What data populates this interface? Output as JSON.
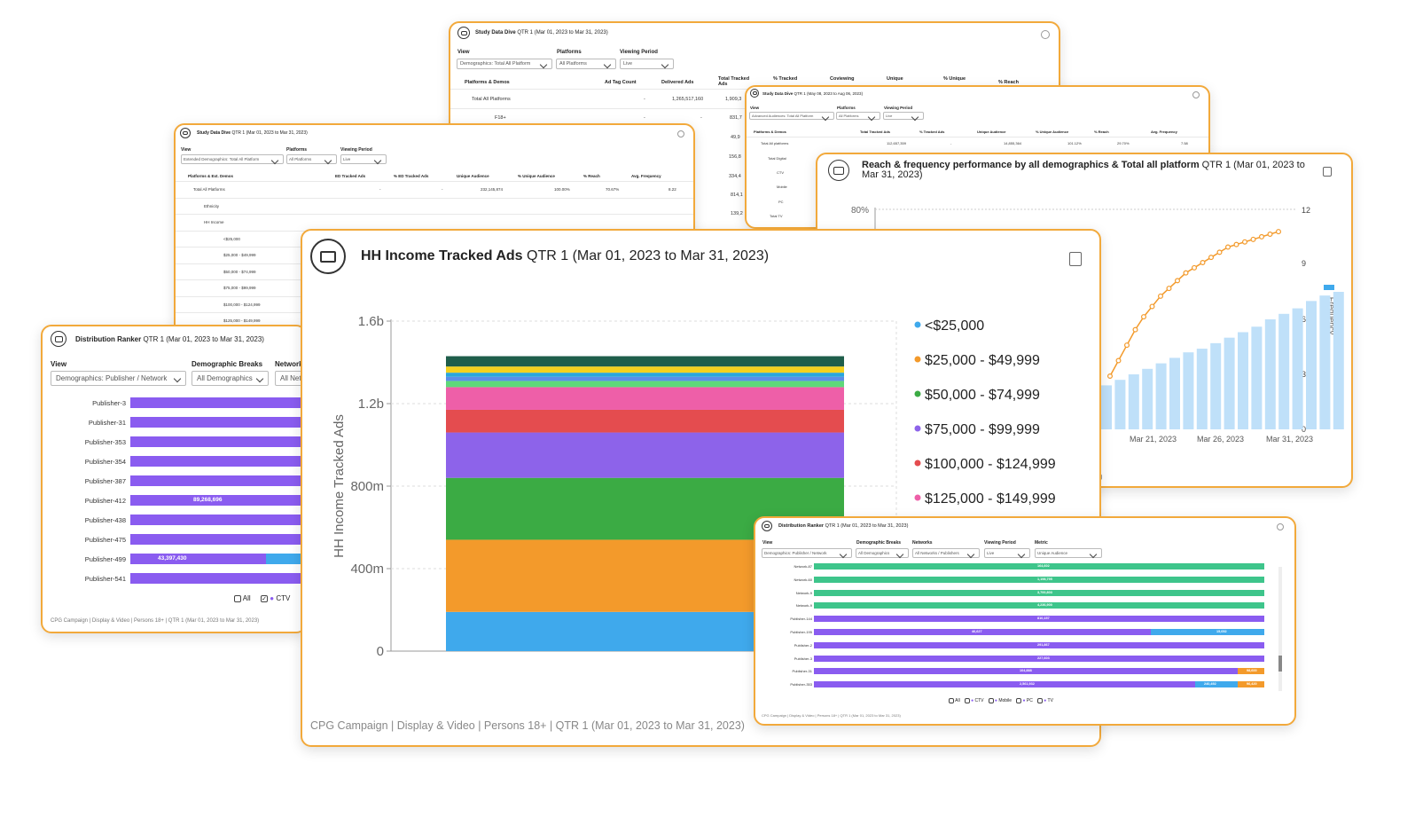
{
  "card_top": {
    "title_bold": "Study Data Dive",
    "title_rest": " QTR 1 (Mar 01, 2023 to Mar 31, 2023)",
    "labels": {
      "view": "View",
      "platforms": "Platforms",
      "period": "Viewing Period"
    },
    "dropdowns": {
      "view": "Demographics: Total All Platform",
      "platforms": "All Platforms",
      "period": "Live"
    },
    "headers": [
      "Platforms & Demos",
      "Ad Tag Count",
      "Delivered Ads",
      "Total Tracked Ads",
      "% Tracked",
      "Coviewing",
      "Unique",
      "% Unique",
      "% Reach"
    ],
    "row1": {
      "label": "Total All Platforms",
      "v1": "-",
      "v2": "1,265,517,160",
      "v3": "1,909,3"
    },
    "row2": {
      "label": "F18+",
      "v1": "-",
      "v2": "-",
      "v3": "831,7"
    },
    "partial": [
      "49,9",
      "156,8",
      "334,4",
      "814,1",
      "139,2"
    ]
  },
  "card_adv": {
    "title_bold": "Study Data Dive",
    "title_rest": " QTR 1 (May 08, 2023 to Aug 06, 2023)",
    "labels": {
      "view": "View",
      "platforms": "Platforms",
      "period": "Viewing Period"
    },
    "dropdowns": {
      "view": "Advanced Audiences: Total All Platform",
      "platforms": "All Platforms",
      "period": "Live"
    },
    "headers": [
      "Platforms & Demos",
      "Total Tracked Ads",
      "% Tracked Ads",
      "Unique Audience",
      "% Unique Audience",
      "% Reach",
      "Avg. Frequency"
    ],
    "row1": {
      "label": "Total All platforms",
      "c1": "112,657,359",
      "c2": "-",
      "c3": "14,855,364",
      "c4": "101.12%",
      "c5": "29.70%",
      "c6": "7.58"
    },
    "rows": [
      "Total Digital",
      "CTV",
      "Mobile",
      "PC",
      "Total TV"
    ]
  },
  "card_ext": {
    "title_bold": "Study Data Dive",
    "title_rest": " QTR 1 (Mar 01, 2023 to Mar 31, 2023)",
    "labels": {
      "view": "View",
      "platforms": "Platforms",
      "period": "Viewing Period"
    },
    "dropdowns": {
      "view": "Extended Demographics: Total All Platform",
      "platforms": "All Platforms",
      "period": "Live"
    },
    "headers": [
      "Platforms & Ext. Demos",
      "ED Tracked Ads",
      "% ED Tracked Ads",
      "Unique Audience",
      "% Unique Audience",
      "% Reach",
      "Avg. Frequency"
    ],
    "row1": {
      "label": "Total All Platforms",
      "c1": "-",
      "c2": "-",
      "c3": "232,145,874",
      "c4": "100.00%",
      "c5": "70.67%",
      "c6": "8.22"
    },
    "rows": [
      "Ethnicity",
      "HH Income",
      "<$25,000",
      "$25,000 - $49,999",
      "$50,000 - $74,999",
      "$75,000 - $99,999",
      "$100,000 - $124,999",
      "$125,000 - $149,999"
    ]
  },
  "card_rf": {
    "title_bold": "Reach & frequency performance by all demographics & Total all platform",
    "title_rest": " QTR 1 (Mar 01, 2023 to Mar 31, 2023)",
    "y_left": "80%",
    "y_right": [
      "12",
      "9",
      "6",
      "3",
      "0"
    ],
    "y_right_label": "Frequency",
    "x_ticks": [
      "23",
      "Mar 21, 2023",
      "Mar 26, 2023",
      "Mar 31, 2023"
    ],
    "footer_partial": "23)"
  },
  "rf_chart": {
    "type": "bar+line",
    "freq_bars": [
      2.4,
      2.7,
      3.0,
      3.3,
      3.6,
      3.9,
      4.2,
      4.4,
      4.7,
      5.0,
      5.3,
      5.6,
      6.0,
      6.3,
      6.6,
      7.0,
      7.3,
      7.5
    ],
    "reach_line": [
      0.3,
      0.36,
      0.42,
      0.48,
      0.53,
      0.57,
      0.61,
      0.64,
      0.67,
      0.7,
      0.72,
      0.74,
      0.76,
      0.78,
      0.8,
      0.81,
      0.82,
      0.83,
      0.84,
      0.85,
      0.86
    ]
  },
  "card_dr": {
    "title_bold": "Distribution Ranker",
    "title_rest": " QTR 1 (Mar 01, 2023 to Mar 31, 2023)",
    "labels": {
      "view": "View",
      "demo": "Demographic Breaks",
      "net": "Network"
    },
    "dropdowns": {
      "view": "Demographics: Publisher / Network",
      "demo": "All Demographics",
      "net": "All Net"
    },
    "publishers": [
      "Publisher-3",
      "Publisher-31",
      "Publisher-353",
      "Publisher-354",
      "Publisher-387",
      "Publisher-412",
      "Publisher-438",
      "Publisher-475",
      "Publisher-499",
      "Publisher-541"
    ],
    "bar_labels": {
      "Publisher-412": "89,268,696",
      "Publisher-499": "43,397,430"
    },
    "checks": [
      "All",
      "CTV"
    ],
    "footer": "CPG Campaign | Display & Video | Persons 18+ | QTR 1 (Mar 01, 2023 to Mar 31, 2023)"
  },
  "card_dr2": {
    "title_bold": "Distribution Ranker",
    "title_rest": " QTR 1 (Mar 01, 2023 to Mar 31, 2023)",
    "labels": {
      "view": "View",
      "demo": "Demographic Breaks",
      "net": "Networks",
      "period": "Viewing Period",
      "metric": "Metric"
    },
    "dropdowns": {
      "view": "Demographics: Publisher / Network",
      "demo": "All Demographics",
      "net": "All Networks / Publishers",
      "period": "Live",
      "metric": "Unique Audience"
    },
    "rows": [
      {
        "name": "Network-87",
        "label": "164,602",
        "type": "net"
      },
      {
        "name": "Network-60",
        "label": "1,198,795",
        "type": "net"
      },
      {
        "name": "Network-9",
        "label": "3,700,803",
        "type": "net"
      },
      {
        "name": "Network-9",
        "label": "4,236,900",
        "type": "net"
      },
      {
        "name": "Publisher-144",
        "label": "810,157",
        "type": "pub"
      },
      {
        "name": "Publisher-195",
        "label": "46,627",
        "label2": "15,052",
        "type": "pub2"
      },
      {
        "name": "Publisher-2",
        "label": "291,867",
        "type": "pub"
      },
      {
        "name": "Publisher-3",
        "label": "227,603",
        "type": "pub"
      },
      {
        "name": "Publisher-31",
        "label": "104,888",
        "label2": "98,600",
        "type": "pub3"
      },
      {
        "name": "Publisher-353",
        "label": "2,561,932",
        "label2": "240,492",
        "label3": "96,420",
        "type": "pub4"
      }
    ],
    "checks": [
      "All",
      "CTV",
      "Mobile",
      "PC",
      "TV"
    ],
    "footer": "CPG Campaign | Display & Video | Persons 18+ | QTR 1 (Mar 01, 2023 to Mar 31, 2023)"
  },
  "main_chart_card": {
    "title_bold": "HH Income Tracked Ads",
    "title_rest": " QTR 1 (Mar 01, 2023 to Mar 31, 2023)",
    "footer": "CPG Campaign | Display & Video | Persons 18+ | QTR 1 (Mar 01, 2023 to Mar 31, 2023)"
  },
  "chart_data": {
    "type": "bar",
    "stacked": true,
    "ylabel": "HH Income Tracked Ads",
    "yticks": [
      "0",
      "400m",
      "800m",
      "1.2b",
      "1.6b"
    ],
    "ylim": [
      0,
      1600000000
    ],
    "categories": [
      ""
    ],
    "legend": [
      "<$25,000",
      "$25,000 - $49,999",
      "$50,000 - $74,999",
      "$75,000 - $99,999",
      "$100,000 - $124,999",
      "$125,000 - $149,999"
    ],
    "series": [
      {
        "name": "<$25,000",
        "values": [
          190000000
        ],
        "color": "#3fa9ec"
      },
      {
        "name": "$25,000 - $49,999",
        "values": [
          350000000
        ],
        "color": "#f39a2b"
      },
      {
        "name": "$50,000 - $74,999",
        "values": [
          300000000
        ],
        "color": "#3bab44"
      },
      {
        "name": "$75,000 - $99,999",
        "values": [
          220000000
        ],
        "color": "#8d63ea"
      },
      {
        "name": "$100,000 - $124,999",
        "values": [
          110000000
        ],
        "color": "#e44c4f"
      },
      {
        "name": "$125,000 - $149,999",
        "values": [
          110000000
        ],
        "color": "#ee5fa8"
      },
      {
        "values": [
          30000000
        ],
        "color": "#5fd87a"
      },
      {
        "values": [
          20000000
        ],
        "color": "#5b8de8"
      },
      {
        "values": [
          20000000
        ],
        "color": "#2aa6dd"
      },
      {
        "values": [
          30000000
        ],
        "color": "#f4d11f"
      },
      {
        "values": [
          50000000
        ],
        "color": "#1f5e4b"
      }
    ]
  }
}
